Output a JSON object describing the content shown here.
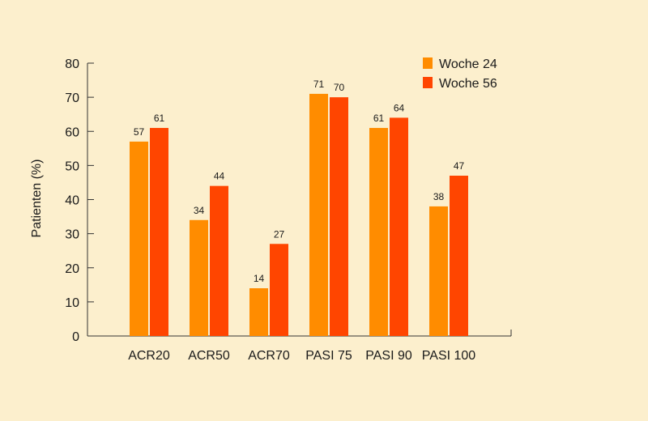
{
  "chart_data": {
    "type": "bar",
    "title": "",
    "xlabel": "",
    "ylabel": "Patienten (%)",
    "ylim": [
      0,
      80
    ],
    "yticks": [
      0,
      10,
      20,
      30,
      40,
      50,
      60,
      70,
      80
    ],
    "grid": false,
    "legend_position": "top-right",
    "categories": [
      "ACR20",
      "ACR50",
      "ACR70",
      "PASI 75",
      "PASI 90",
      "PASI 100"
    ],
    "series": [
      {
        "name": "Woche 24",
        "color": "#ff8c00",
        "values": [
          57,
          34,
          14,
          71,
          61,
          38
        ]
      },
      {
        "name": "Woche 56",
        "color": "#ff4500",
        "values": [
          61,
          44,
          27,
          70,
          64,
          47
        ]
      }
    ]
  }
}
